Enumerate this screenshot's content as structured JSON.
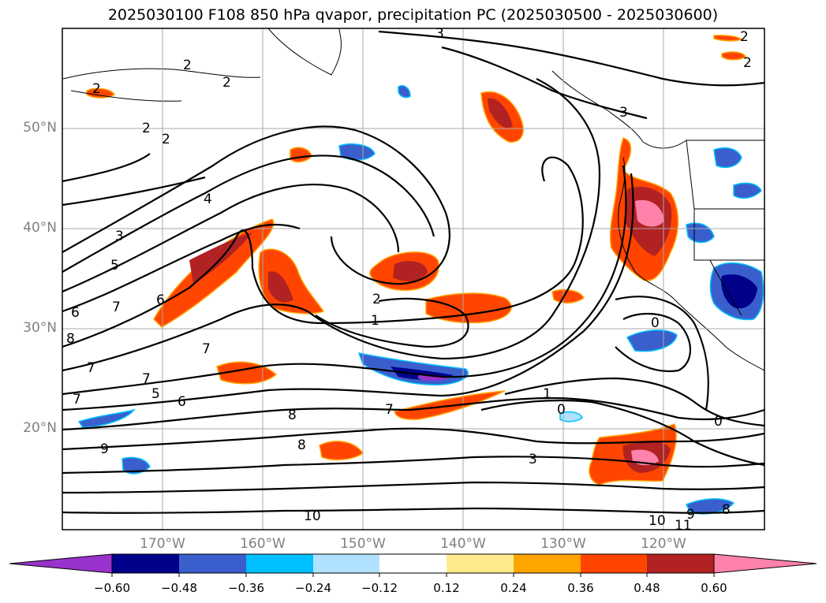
{
  "title": "2025030100 F108 850 hPa qvapor, precipitation PC (2025030500 - 2025030600)",
  "axes": {
    "lat_ticks": [
      "50°N",
      "40°N",
      "30°N",
      "20°N"
    ],
    "lon_ticks": [
      "170°W",
      "160°W",
      "150°W",
      "140°W",
      "130°W",
      "120°W"
    ]
  },
  "colorbar": {
    "ticks": [
      "−0.60",
      "−0.48",
      "−0.36",
      "−0.24",
      "−0.12",
      "0.12",
      "0.24",
      "0.36",
      "0.48",
      "0.60"
    ],
    "colors": [
      "#9932cc",
      "#00008b",
      "#3a5fcd",
      "#00bfff",
      "#b0e2ff",
      "#ffffff",
      "#ffeb8c",
      "#ffa500",
      "#ff4500",
      "#b22222",
      "#ff82ab"
    ]
  },
  "contour_labels": [
    "2",
    "2",
    "2",
    "2",
    "2",
    "3",
    "3",
    "4",
    "3",
    "5",
    "6",
    "6",
    "7",
    "8",
    "7",
    "7",
    "7",
    "5",
    "6",
    "7",
    "8",
    "9",
    "8",
    "10",
    "2",
    "1",
    "7",
    "1",
    "0",
    "0",
    "3",
    "10",
    "11",
    "9",
    "8",
    "0",
    "2",
    "2"
  ]
}
